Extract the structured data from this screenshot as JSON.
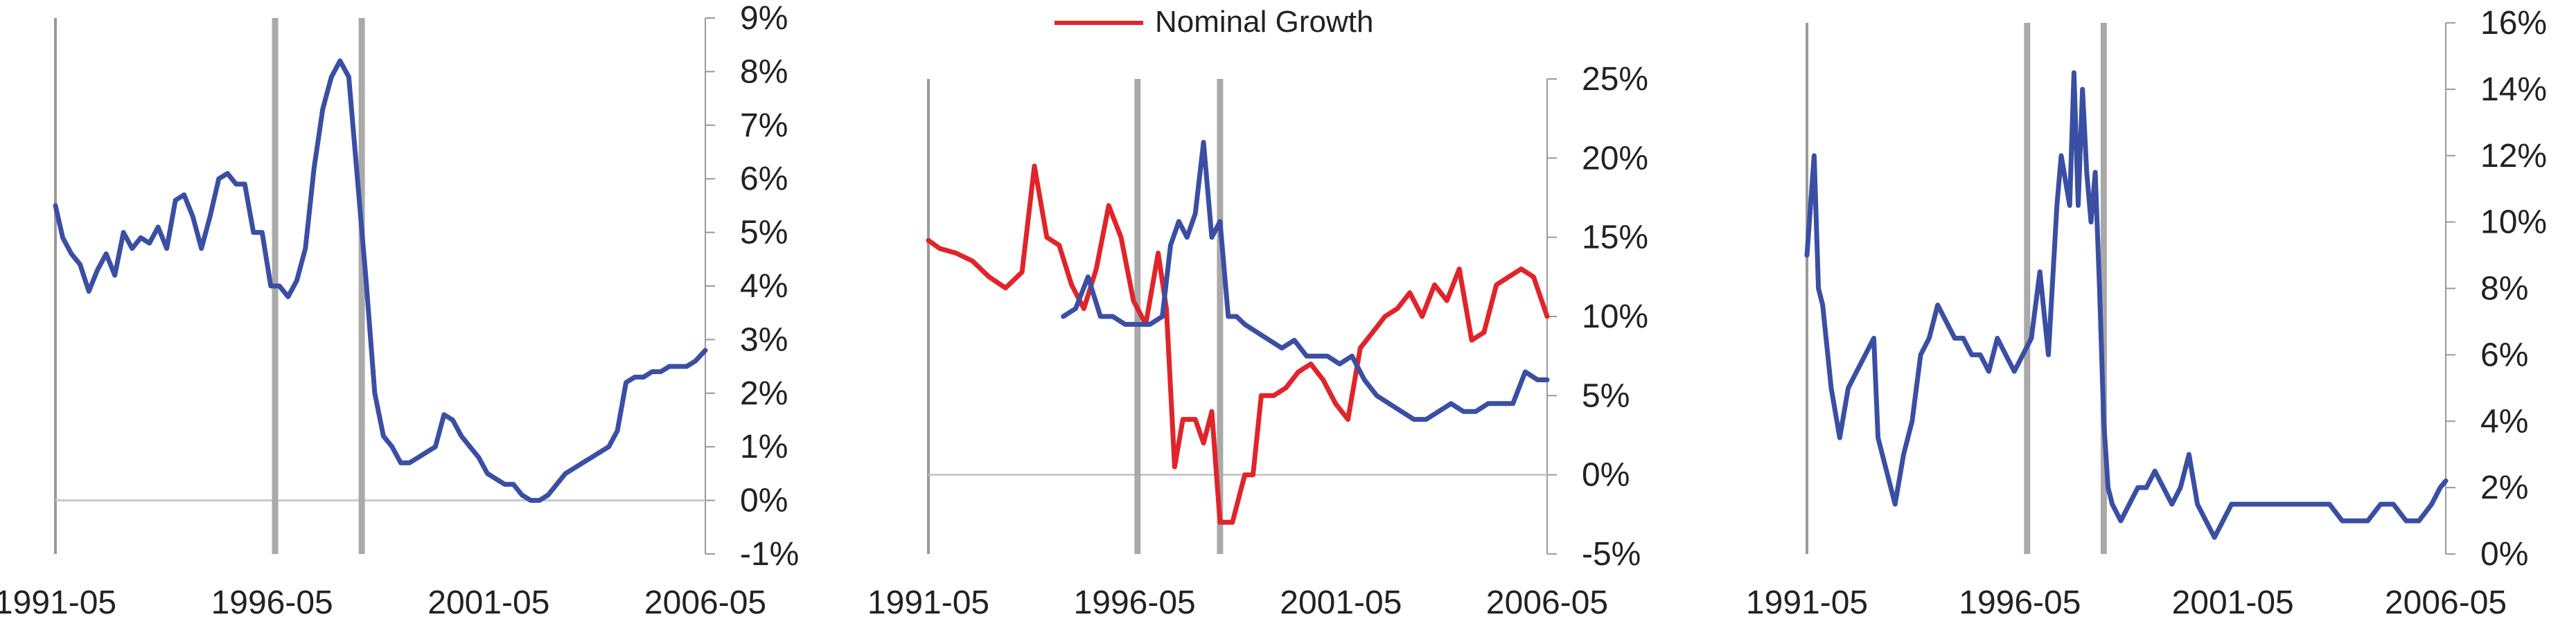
{
  "colors": {
    "blue": "#3a4fa3",
    "red": "#e0242a",
    "frame": "#9a9a9a",
    "event_line": "#a9a9a9",
    "zero_line": "#c8c8c8"
  },
  "chart_data": [
    {
      "type": "line",
      "x_tick_labels": [
        "1991-05",
        "1996-05",
        "2001-05",
        "2006-05"
      ],
      "x_ticks": [
        1991.33,
        1996.33,
        2001.33,
        2006.33
      ],
      "xlim": [
        1991.33,
        2006.33
      ],
      "y_tick_labels": [
        "-1%",
        "0%",
        "1%",
        "2%",
        "3%",
        "4%",
        "5%",
        "6%",
        "7%",
        "8%",
        "9%"
      ],
      "ylim": [
        -1,
        9
      ],
      "event_lines": [
        1996.4,
        1998.4
      ],
      "series": [
        {
          "color": "#3a4fa3",
          "x": [
            1991.33,
            1991.5,
            1991.7,
            1991.9,
            1992.1,
            1992.3,
            1992.5,
            1992.7,
            1992.9,
            1993.1,
            1993.3,
            1993.5,
            1993.7,
            1993.9,
            1994.1,
            1994.3,
            1994.5,
            1994.7,
            1994.9,
            1995.1,
            1995.3,
            1995.5,
            1995.7,
            1995.9,
            1996.1,
            1996.3,
            1996.5,
            1996.7,
            1996.9,
            1997.1,
            1997.3,
            1997.5,
            1997.7,
            1997.9,
            1998.1,
            1998.3,
            1998.5,
            1998.7,
            1998.9,
            1999.1,
            1999.3,
            1999.5,
            1999.7,
            1999.9,
            2000.1,
            2000.3,
            2000.5,
            2000.7,
            2000.9,
            2001.1,
            2001.3,
            2001.5,
            2001.7,
            2001.9,
            2002.1,
            2002.3,
            2002.5,
            2002.7,
            2002.9,
            2003.1,
            2003.3,
            2003.5,
            2003.7,
            2003.9,
            2004.1,
            2004.3,
            2004.5,
            2004.7,
            2004.9,
            2005.1,
            2005.3,
            2005.5,
            2005.7,
            2005.9,
            2006.1,
            2006.33
          ],
          "y": [
            5.5,
            4.9,
            4.6,
            4.4,
            3.9,
            4.3,
            4.6,
            4.2,
            5.0,
            4.7,
            4.9,
            4.8,
            5.1,
            4.7,
            5.6,
            5.7,
            5.3,
            4.7,
            5.3,
            6.0,
            6.1,
            5.9,
            5.9,
            5.0,
            5.0,
            4.0,
            4.0,
            3.8,
            4.1,
            4.7,
            6.2,
            7.3,
            7.9,
            8.2,
            7.9,
            6.0,
            4.1,
            2.0,
            1.2,
            1.0,
            0.7,
            0.7,
            0.8,
            0.9,
            1.0,
            1.6,
            1.5,
            1.2,
            1.0,
            0.8,
            0.5,
            0.4,
            0.3,
            0.3,
            0.1,
            0.0,
            0.0,
            0.1,
            0.3,
            0.5,
            0.6,
            0.7,
            0.8,
            0.9,
            1.0,
            1.3,
            2.2,
            2.3,
            2.3,
            2.4,
            2.4,
            2.5,
            2.5,
            2.5,
            2.6,
            2.8
          ]
        }
      ]
    },
    {
      "type": "line",
      "legend": [
        {
          "label": "Nominal Growth",
          "color": "#e0242a"
        }
      ],
      "legend_position": "top-center",
      "x_tick_labels": [
        "1991-05",
        "1996-05",
        "2001-05",
        "2006-05"
      ],
      "x_ticks": [
        1991.33,
        1996.33,
        2001.33,
        2006.33
      ],
      "xlim": [
        1991.33,
        2006.33
      ],
      "y_tick_labels": [
        "-5%",
        "0%",
        "5%",
        "10%",
        "15%",
        "20%",
        "25%"
      ],
      "ylim": [
        -5,
        25
      ],
      "event_lines": [
        1996.4,
        1998.4
      ],
      "series": [
        {
          "name": "Nominal Growth",
          "color": "#e0242a",
          "x": [
            1991.33,
            1991.6,
            1992.0,
            1992.4,
            1992.8,
            1993.2,
            1993.6,
            1993.9,
            1994.2,
            1994.5,
            1994.8,
            1995.1,
            1995.4,
            1995.7,
            1996.0,
            1996.3,
            1996.6,
            1996.9,
            1997.1,
            1997.3,
            1997.5,
            1997.8,
            1998.0,
            1998.2,
            1998.4,
            1998.7,
            1999.0,
            1999.2,
            1999.4,
            1999.7,
            2000.0,
            2000.3,
            2000.6,
            2000.9,
            2001.2,
            2001.5,
            2001.8,
            2002.1,
            2002.4,
            2002.7,
            2003.0,
            2003.3,
            2003.6,
            2003.9,
            2004.2,
            2004.5,
            2004.8,
            2005.1,
            2005.4,
            2005.7,
            2006.0,
            2006.33
          ],
          "y": [
            14.8,
            14.3,
            14.0,
            13.5,
            12.5,
            11.8,
            12.8,
            19.5,
            15.0,
            14.5,
            12.0,
            10.5,
            13.0,
            17.0,
            15.0,
            11.0,
            9.5,
            14.0,
            10.5,
            0.5,
            3.5,
            3.5,
            2.0,
            4.0,
            -3.0,
            -3.0,
            0,
            0,
            5.0,
            5.0,
            5.5,
            6.5,
            7.0,
            6.0,
            4.5,
            3.5,
            8.0,
            9.0,
            10.0,
            10.5,
            11.5,
            10.0,
            12.0,
            11.0,
            13.0,
            8.5,
            9.0,
            12.0,
            12.5,
            13.0,
            12.5,
            10.0
          ]
        },
        {
          "color": "#3a4fa3",
          "x": [
            1994.6,
            1994.9,
            1995.2,
            1995.5,
            1995.8,
            1996.1,
            1996.4,
            1996.7,
            1997.0,
            1997.2,
            1997.4,
            1997.6,
            1997.8,
            1998.0,
            1998.2,
            1998.4,
            1998.6,
            1998.8,
            1999.0,
            1999.3,
            1999.6,
            1999.9,
            2000.2,
            2000.5,
            2000.8,
            2001.0,
            2001.3,
            2001.6,
            2001.9,
            2002.2,
            2002.5,
            2002.8,
            2003.1,
            2003.4,
            2003.7,
            2004.0,
            2004.3,
            2004.6,
            2004.9,
            2005.2,
            2005.5,
            2005.8,
            2006.1,
            2006.33
          ],
          "y": [
            10.0,
            10.5,
            12.5,
            10.0,
            10.0,
            9.5,
            9.5,
            9.5,
            10.0,
            14.5,
            16.0,
            15.0,
            16.5,
            21.0,
            15.0,
            16.0,
            10.0,
            10.0,
            9.5,
            9.0,
            8.5,
            8.0,
            8.5,
            7.5,
            7.5,
            7.5,
            7.0,
            7.5,
            6.0,
            5.0,
            4.5,
            4.0,
            3.5,
            3.5,
            4.0,
            4.5,
            4.0,
            4.0,
            4.5,
            4.5,
            4.5,
            6.5,
            6.0,
            6.0
          ]
        }
      ]
    },
    {
      "type": "line",
      "x_tick_labels": [
        "1991-05",
        "1996-05",
        "2001-05",
        "2006-05"
      ],
      "x_ticks": [
        1991.33,
        1996.33,
        2001.33,
        2006.33
      ],
      "xlim": [
        1991.33,
        2006.33
      ],
      "y_tick_labels": [
        "0%",
        "2%",
        "4%",
        "6%",
        "8%",
        "10%",
        "12%",
        "14%",
        "16%"
      ],
      "ylim": [
        0,
        16
      ],
      "event_lines": [
        1996.5,
        1998.3
      ],
      "series": [
        {
          "color": "#3a4fa3",
          "x": [
            1991.33,
            1991.5,
            1991.6,
            1991.7,
            1991.9,
            1992.1,
            1992.3,
            1992.5,
            1992.7,
            1992.9,
            1993.0,
            1993.2,
            1993.4,
            1993.6,
            1993.8,
            1994.0,
            1994.2,
            1994.4,
            1994.6,
            1994.8,
            1995.0,
            1995.2,
            1995.4,
            1995.6,
            1995.8,
            1996.0,
            1996.2,
            1996.4,
            1996.6,
            1996.8,
            1997.0,
            1997.2,
            1997.3,
            1997.5,
            1997.6,
            1997.7,
            1997.8,
            1997.9,
            1998.0,
            1998.1,
            1998.2,
            1998.3,
            1998.4,
            1998.5,
            1998.7,
            1998.9,
            1999.1,
            1999.3,
            1999.5,
            1999.7,
            1999.9,
            2000.1,
            2000.3,
            2000.5,
            2000.7,
            2000.9,
            2001.1,
            2001.3,
            2001.5,
            2001.8,
            2002.1,
            2002.4,
            2002.7,
            2003.0,
            2003.3,
            2003.6,
            2003.9,
            2004.2,
            2004.5,
            2004.8,
            2005.1,
            2005.4,
            2005.7,
            2006.0,
            2006.2,
            2006.33
          ],
          "y": [
            9.0,
            12.0,
            8.0,
            7.5,
            5.0,
            3.5,
            5.0,
            5.5,
            6.0,
            6.5,
            3.5,
            2.5,
            1.5,
            3.0,
            4.0,
            6.0,
            6.5,
            7.5,
            7.0,
            6.5,
            6.5,
            6.0,
            6.0,
            5.5,
            6.5,
            6.0,
            5.5,
            6.0,
            6.5,
            8.5,
            6.0,
            10.5,
            12.0,
            10.5,
            14.5,
            10.5,
            14.0,
            11.5,
            10.0,
            11.5,
            8.0,
            4.0,
            2.0,
            1.5,
            1.0,
            1.5,
            2.0,
            2.0,
            2.5,
            2.0,
            1.5,
            2.0,
            3.0,
            1.5,
            1.0,
            0.5,
            1.0,
            1.5,
            1.5,
            1.5,
            1.5,
            1.5,
            1.5,
            1.5,
            1.5,
            1.5,
            1.0,
            1.0,
            1.0,
            1.5,
            1.5,
            1.0,
            1.0,
            1.5,
            2.0,
            2.2
          ]
        }
      ]
    }
  ]
}
